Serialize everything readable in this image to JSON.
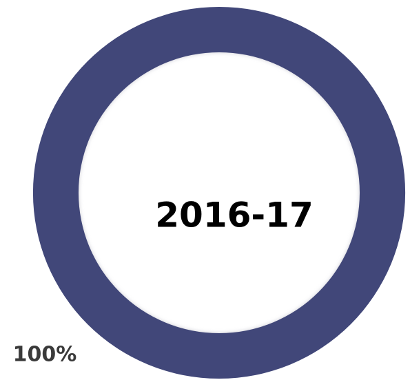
{
  "chart_data": {
    "type": "donut",
    "center_label": "2016-17",
    "values": [
      100
    ],
    "value_labels": [
      "100%"
    ],
    "colors": [
      "#414779"
    ]
  }
}
